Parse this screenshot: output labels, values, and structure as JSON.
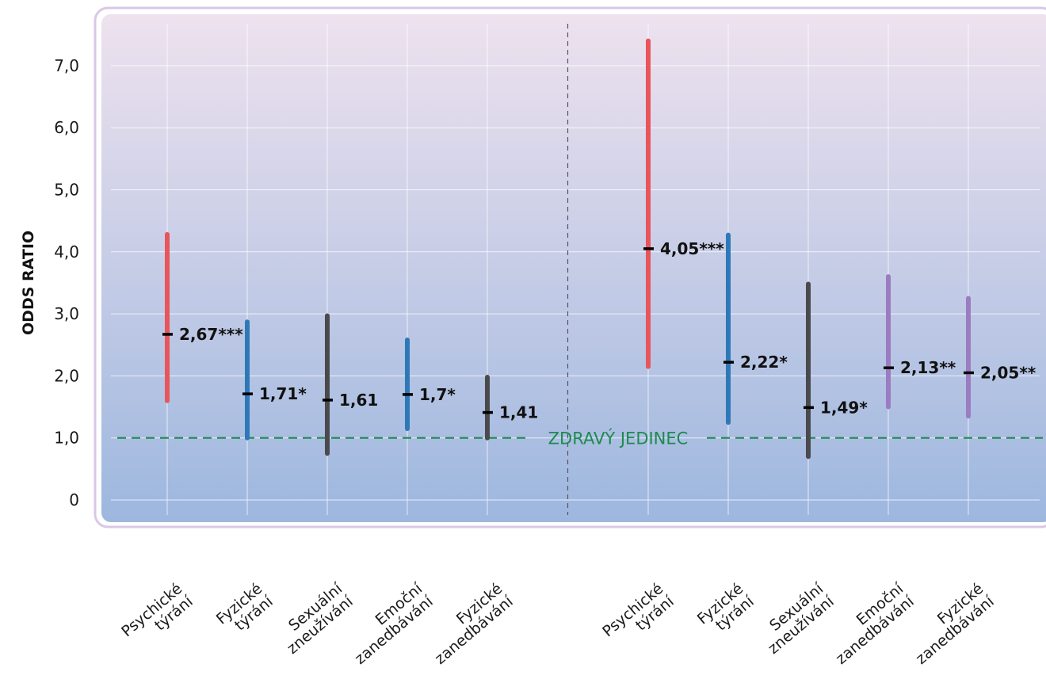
{
  "chart_data": {
    "type": "interval",
    "ylabel": "ODDS RATIO",
    "ylim": [
      0,
      7.5
    ],
    "yticks": [
      0,
      1.0,
      2.0,
      3.0,
      4.0,
      5.0,
      6.0,
      7.0
    ],
    "ytick_labels": [
      "0",
      "1,0",
      "2,0",
      "3,0",
      "4,0",
      "5,0",
      "6,0",
      "7,0"
    ],
    "grid": true,
    "reference_line": {
      "value": 1.0,
      "label": "ZDRAVÝ JEDINEC",
      "color": "#1e8a4e"
    },
    "groups": [
      {
        "items": [
          {
            "category": [
              "Psychické",
              "týrání"
            ],
            "low": 1.6,
            "high": 4.28,
            "or": 2.67,
            "label": "2,67***",
            "color": "#e8555a"
          },
          {
            "category": [
              "Fyzické",
              "týrání"
            ],
            "low": 1.0,
            "high": 2.87,
            "or": 1.71,
            "label": "1,71*",
            "color": "#2f78b8"
          },
          {
            "category": [
              "Sexuální",
              "zneužívání"
            ],
            "low": 0.75,
            "high": 2.97,
            "or": 1.61,
            "label": "1,61",
            "color": "#4a4a4c"
          },
          {
            "category": [
              "Emoční",
              "zanedbávání"
            ],
            "low": 1.15,
            "high": 2.58,
            "or": 1.7,
            "label": "1,7*",
            "color": "#2f78b8"
          },
          {
            "category": [
              "Fyzické",
              "zanedbávání"
            ],
            "low": 1.0,
            "high": 1.98,
            "or": 1.41,
            "label": "1,41",
            "color": "#4a4a4c"
          }
        ]
      },
      {
        "items": [
          {
            "category": [
              "Psychické",
              "týrání"
            ],
            "low": 2.15,
            "high": 7.4,
            "or": 4.05,
            "label": "4,05***",
            "color": "#e8555a"
          },
          {
            "category": [
              "Fyzické",
              "týrání"
            ],
            "low": 1.25,
            "high": 4.27,
            "or": 2.22,
            "label": "2,22*",
            "color": "#2f78b8"
          },
          {
            "category": [
              "Sexuální",
              "zneužívání"
            ],
            "low": 0.7,
            "high": 3.48,
            "or": 1.49,
            "label": "1,49*",
            "color": "#4a4a4c"
          },
          {
            "category": [
              "Emoční",
              "zanedbávání"
            ],
            "low": 1.5,
            "high": 3.6,
            "or": 2.13,
            "label": "2,13**",
            "color": "#9b7cc0"
          },
          {
            "category": [
              "Fyzické",
              "zanedbávání"
            ],
            "low": 1.35,
            "high": 3.25,
            "or": 2.05,
            "label": "2,05**",
            "color": "#9b7cc0"
          }
        ]
      }
    ]
  }
}
